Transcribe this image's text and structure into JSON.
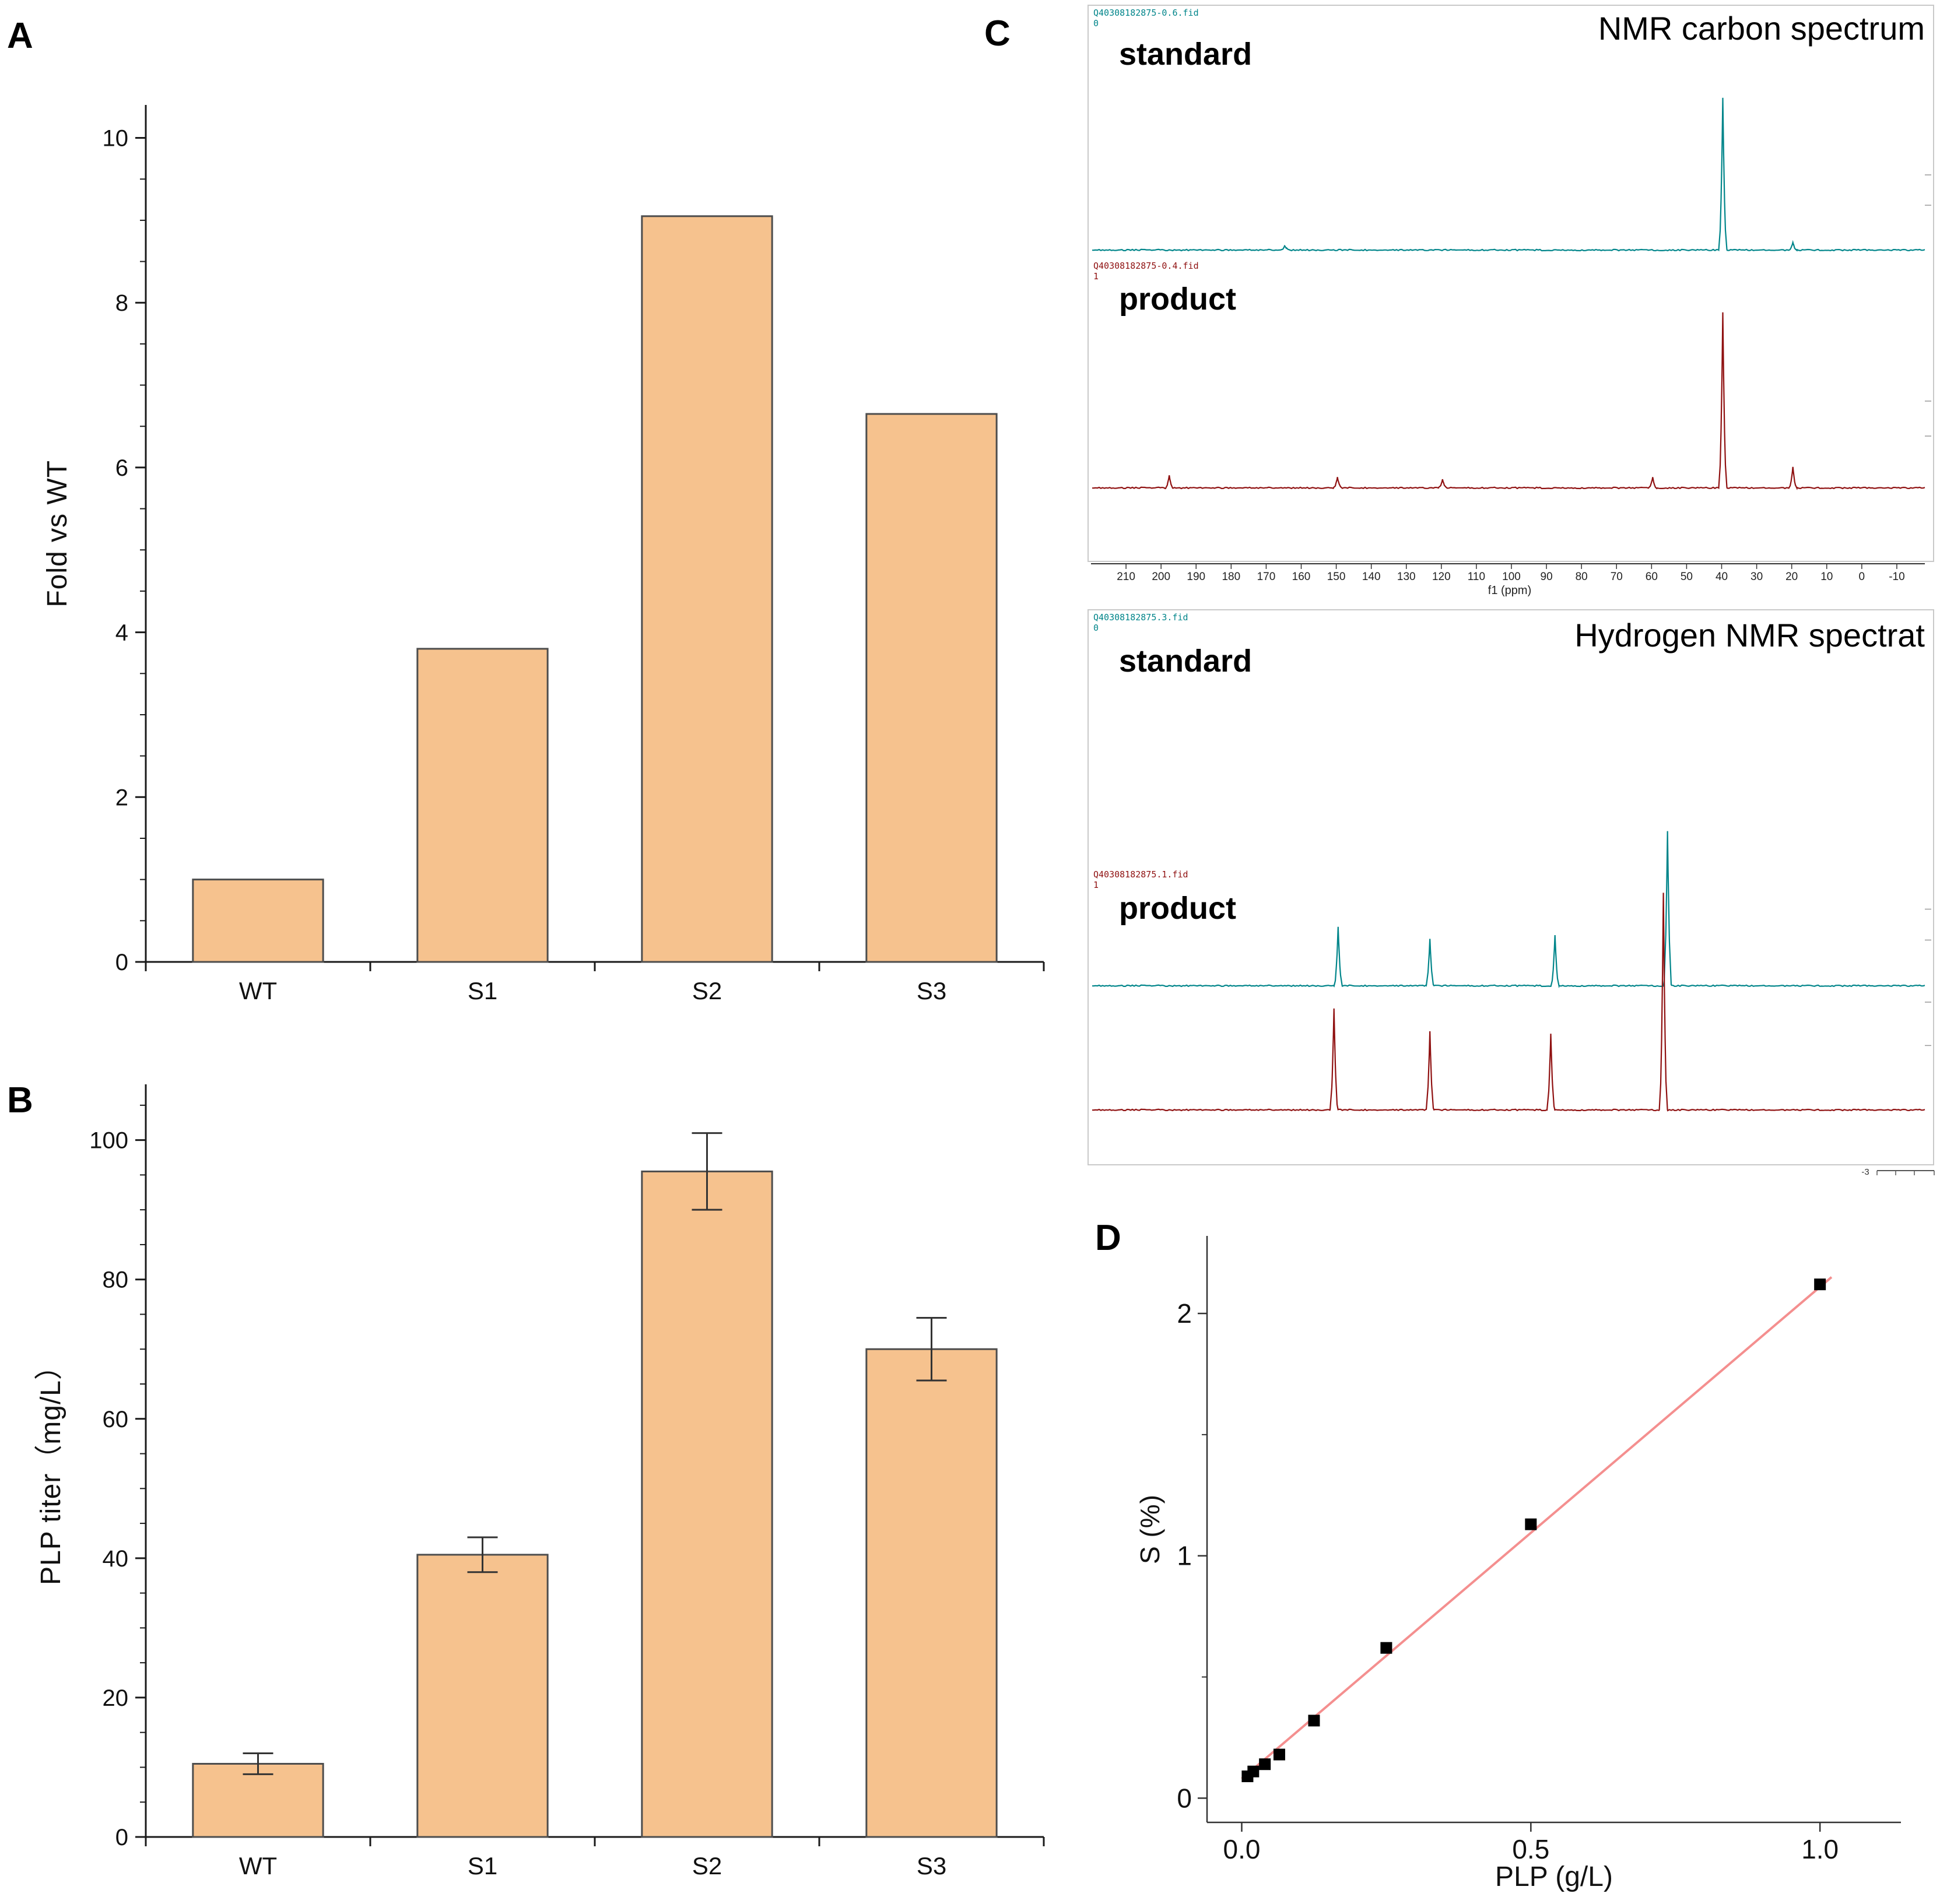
{
  "figure": {
    "panel_a_letter": "A",
    "panel_b_letter": "B",
    "panel_c_letter": "C",
    "panel_d_letter": "D"
  },
  "colors": {
    "bar_fill": "#f6c28e",
    "bar_stroke": "#4d4d4d",
    "teal_trace": "#00858a",
    "red_trace": "#8f1010",
    "fit_line": "#f48f8f",
    "point": "#000000",
    "axis": "#1a1a1a"
  },
  "nmr": {
    "carbon": {
      "standard_fid": "Q40308182875-0.6.fid",
      "standard_fid_index": "0",
      "product_fid": "Q40308182875-0.4.fid",
      "product_fid_index": "1"
    },
    "hydrogen": {
      "standard_fid": "Q40308182875.3.fid",
      "standard_fid_index": "0",
      "product_fid": "Q40308182875.1.fid",
      "product_fid_index": "1",
      "scale_mark": "-3"
    }
  },
  "chart_data": [
    {
      "panel": "A",
      "type": "bar",
      "categories": [
        "WT",
        "S1",
        "S2",
        "S3"
      ],
      "values": [
        1.0,
        3.8,
        9.05,
        6.65
      ],
      "title": "",
      "xlabel": "",
      "ylabel": "Fold vs WT",
      "ylim": [
        0,
        10.4
      ],
      "yticks": [
        0,
        2,
        4,
        6,
        8,
        10
      ],
      "minor_step": 0.5,
      "grid": false
    },
    {
      "panel": "B",
      "type": "bar",
      "categories": [
        "WT",
        "S1",
        "S2",
        "S3"
      ],
      "values": [
        10.5,
        40.5,
        95.5,
        70.0
      ],
      "errors": [
        1.5,
        2.5,
        5.5,
        4.5
      ],
      "title": "",
      "xlabel": "",
      "ylabel": "PLP titer（mg/L）",
      "ylim": [
        0,
        108
      ],
      "yticks": [
        0,
        20,
        40,
        60,
        80,
        100
      ],
      "minor_step": 5,
      "grid": false
    },
    {
      "panel": "C-top",
      "type": "line",
      "title": "NMR carbon spectrum",
      "xlabel": "f1 (ppm)",
      "xlim": [
        220,
        -18
      ],
      "xticks": [
        210,
        200,
        190,
        180,
        170,
        160,
        150,
        140,
        130,
        120,
        110,
        100,
        90,
        80,
        70,
        60,
        50,
        40,
        30,
        20,
        10,
        0,
        -10
      ],
      "series": [
        {
          "name": "standard",
          "color_key": "teal_trace",
          "peaks_ppm": [
            [
              165,
              0.03
            ],
            [
              40,
              1.0
            ],
            [
              20,
              0.05
            ]
          ]
        },
        {
          "name": "product",
          "color_key": "red_trace",
          "peaks_ppm": [
            [
              198,
              0.07
            ],
            [
              150,
              0.06
            ],
            [
              120,
              0.05
            ],
            [
              60,
              0.06
            ],
            [
              40,
              1.0
            ],
            [
              20,
              0.12
            ]
          ]
        }
      ]
    },
    {
      "panel": "C-bottom",
      "type": "line",
      "title": "Hydrogen NMR spectrat",
      "x_unit": "fraction-of-axis (ppm tick labels not visible)",
      "series": [
        {
          "name": "standard",
          "color_key": "teal_trace",
          "peaks_frac": [
            [
              0.295,
              0.38
            ],
            [
              0.405,
              0.3
            ],
            [
              0.555,
              0.33
            ],
            [
              0.69,
              1.0
            ]
          ]
        },
        {
          "name": "product",
          "color_key": "red_trace",
          "peaks_frac": [
            [
              0.29,
              0.47
            ],
            [
              0.405,
              0.36
            ],
            [
              0.55,
              0.35
            ],
            [
              0.685,
              1.0
            ]
          ]
        }
      ]
    },
    {
      "panel": "D",
      "type": "scatter",
      "title": "",
      "xlabel": "PLP  (g/L)",
      "ylabel": "S  (%)",
      "points": [
        [
          0.01,
          0.09
        ],
        [
          0.02,
          0.11
        ],
        [
          0.04,
          0.14
        ],
        [
          0.065,
          0.18
        ],
        [
          0.125,
          0.32
        ],
        [
          0.25,
          0.62
        ],
        [
          0.5,
          1.13
        ],
        [
          1.0,
          2.12
        ]
      ],
      "fit_line": {
        "x0": 0.0,
        "y0": 0.08,
        "x1": 1.02,
        "y1": 2.15
      },
      "xlim": [
        -0.06,
        1.14
      ],
      "ylim": [
        -0.1,
        2.32
      ],
      "xticks": [
        0.0,
        0.5,
        1.0
      ],
      "yticks": [
        0,
        1,
        2
      ],
      "xtick_labels": [
        "0.0",
        "0.5",
        "1.0"
      ],
      "ytick_labels": [
        "0",
        "1",
        "2"
      ],
      "y_minor_ticks": [
        0.5,
        1.5
      ]
    }
  ]
}
